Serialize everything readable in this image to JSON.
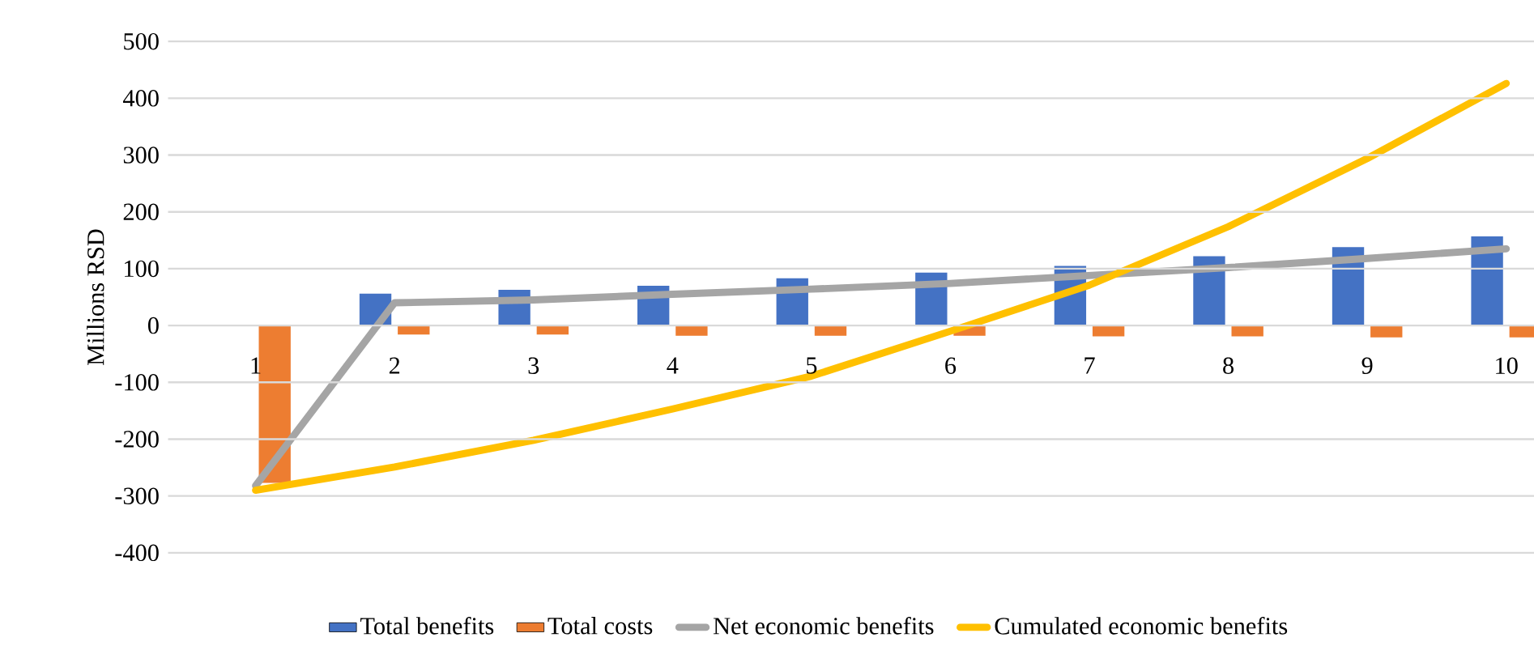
{
  "chart_data": {
    "type": "bar",
    "ylabel": "Millions RSD",
    "categories": [
      "1",
      "2",
      "3",
      "4",
      "5",
      "6",
      "7",
      "8",
      "9",
      "10"
    ],
    "series": [
      {
        "name": "Total benefits",
        "color": "#4472c4",
        "values": [
          0,
          56,
          63,
          70,
          83,
          93,
          105,
          122,
          138,
          157
        ]
      },
      {
        "name": "Total costs",
        "color": "#ed7d31",
        "values": [
          -277,
          -16,
          -16,
          -18,
          -18,
          -18,
          -19,
          -19,
          -21,
          -21
        ]
      },
      {
        "name": "Net economic benefits",
        "type": "line",
        "color": "#a5a5a5",
        "values": [
          -282,
          40,
          45,
          55,
          64,
          74,
          88,
          102,
          118,
          135
        ]
      },
      {
        "name": "Cumulated economic benefits",
        "type": "line",
        "color": "#ffc000",
        "values": [
          -290,
          -249,
          -202,
          -147,
          -89,
          -10,
          71,
          174,
          294,
          426
        ]
      }
    ],
    "ylim": [
      -400,
      500
    ],
    "yticks": [
      -400,
      -300,
      -200,
      -100,
      0,
      100,
      200,
      300,
      400,
      500
    ],
    "grid": "y",
    "legend": "bottom"
  }
}
